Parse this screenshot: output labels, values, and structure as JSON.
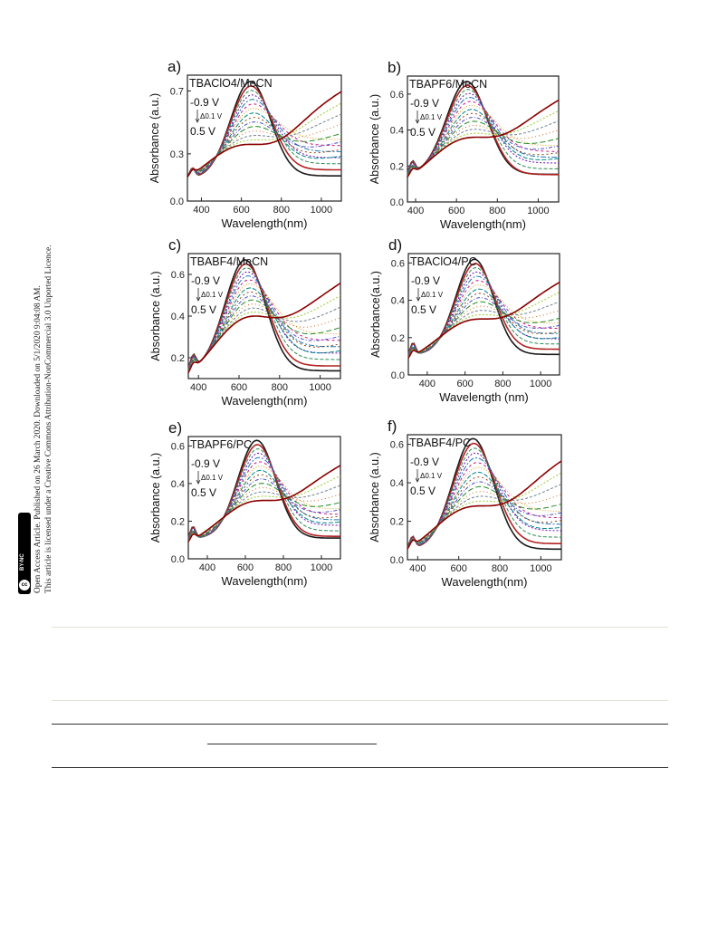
{
  "sidebar": {
    "line1": "Open Access Article. Published on 26 March 2020. Downloaded on 5/1/2020 9:04:08 AM.",
    "line2": "This article is licensed under a Creative Commons Attribution-NonCommercial 3.0 Unported Licence.",
    "badge_cc": "cc",
    "badge_text": "BY-NC"
  },
  "figure": {
    "xlabel": "Wavelength(nm)",
    "xlabel_alt": "Wavelength (nm)",
    "ylabel": "Absorbance (a.u.)",
    "ylabel_alt": "Absorbance(a.u.)",
    "start_label": "-0.9 V",
    "step_label": "Δ0.1 V",
    "end_label": "0.5 V"
  },
  "chart_data": [
    {
      "panel": "a)",
      "type": "line",
      "title": "TBAClO4/MeCN",
      "xlim": [
        330,
        1100
      ],
      "ylim": [
        0.0,
        0.8
      ],
      "xticks": [
        400,
        600,
        800,
        1000
      ],
      "yticks": [
        0.0,
        0.3,
        0.7
      ],
      "series": [
        {
          "label": "-0.9 V",
          "peak_x": 645,
          "peak_y": 0.76,
          "tail_y": 0.16,
          "start_y": 0.26
        },
        {
          "label": "0.5 V",
          "peak_x": 680,
          "peak_y": 0.36,
          "tail_y": 0.7,
          "start_y": 0.25
        }
      ]
    },
    {
      "panel": "b)",
      "type": "line",
      "title": "TBAPF6/MeCN",
      "xlim": [
        360,
        1100
      ],
      "ylim": [
        0.0,
        0.7
      ],
      "xticks": [
        400,
        600,
        800,
        1000
      ],
      "yticks": [
        0.0,
        0.2,
        0.4,
        0.6
      ],
      "series": [
        {
          "label": "-0.9 V",
          "peak_x": 650,
          "peak_y": 0.67,
          "tail_y": 0.12,
          "start_y": 0.28
        },
        {
          "label": "0.5 V",
          "peak_x": 700,
          "peak_y": 0.36,
          "tail_y": 0.57,
          "start_y": 0.22
        }
      ]
    },
    {
      "panel": "c)",
      "type": "line",
      "title": "TBABF4/MeCN",
      "xlim": [
        350,
        1100
      ],
      "ylim": [
        0.1,
        0.7
      ],
      "xticks": [
        400,
        600,
        800,
        1000
      ],
      "yticks": [
        0.2,
        0.4,
        0.6
      ],
      "series": [
        {
          "label": "-0.9 V",
          "peak_x": 630,
          "peak_y": 0.67,
          "tail_y": 0.13,
          "start_y": 0.25
        },
        {
          "label": "0.5 V",
          "peak_x": 680,
          "peak_y": 0.4,
          "tail_y": 0.56,
          "start_y": 0.19
        }
      ]
    },
    {
      "panel": "d)",
      "type": "line",
      "title": "TBAClO4/PC",
      "xlim": [
        300,
        1100
      ],
      "ylim": [
        0.0,
        0.65
      ],
      "xticks": [
        400,
        600,
        800,
        1000
      ],
      "yticks": [
        0.0,
        0.2,
        0.4,
        0.6
      ],
      "series": [
        {
          "label": "-0.9 V",
          "peak_x": 650,
          "peak_y": 0.62,
          "tail_y": 0.11,
          "start_y": 0.2
        },
        {
          "label": "0.5 V",
          "peak_x": 700,
          "peak_y": 0.3,
          "tail_y": 0.5,
          "start_y": 0.15
        }
      ]
    },
    {
      "panel": "e)",
      "type": "line",
      "title": "TBAPF6/PC",
      "xlim": [
        300,
        1100
      ],
      "ylim": [
        0.0,
        0.65
      ],
      "xticks": [
        400,
        600,
        800,
        1000
      ],
      "yticks": [
        0.0,
        0.2,
        0.4,
        0.6
      ],
      "series": [
        {
          "label": "-0.9 V",
          "peak_x": 660,
          "peak_y": 0.63,
          "tail_y": 0.09,
          "start_y": 0.2
        },
        {
          "label": "0.5 V",
          "peak_x": 700,
          "peak_y": 0.31,
          "tail_y": 0.5,
          "start_y": 0.15
        }
      ]
    },
    {
      "panel": "f)",
      "type": "line",
      "title": "TBABF4/PC",
      "xlim": [
        350,
        1100
      ],
      "ylim": [
        0.0,
        0.65
      ],
      "xticks": [
        400,
        600,
        800,
        1000
      ],
      "yticks": [
        0.0,
        0.2,
        0.4,
        0.6
      ],
      "series": [
        {
          "label": "-0.9 V",
          "peak_x": 670,
          "peak_y": 0.63,
          "tail_y": 0.05,
          "start_y": 0.1
        },
        {
          "label": "0.5 V",
          "peak_x": 720,
          "peak_y": 0.28,
          "tail_y": 0.52,
          "start_y": 0.08
        }
      ]
    }
  ]
}
